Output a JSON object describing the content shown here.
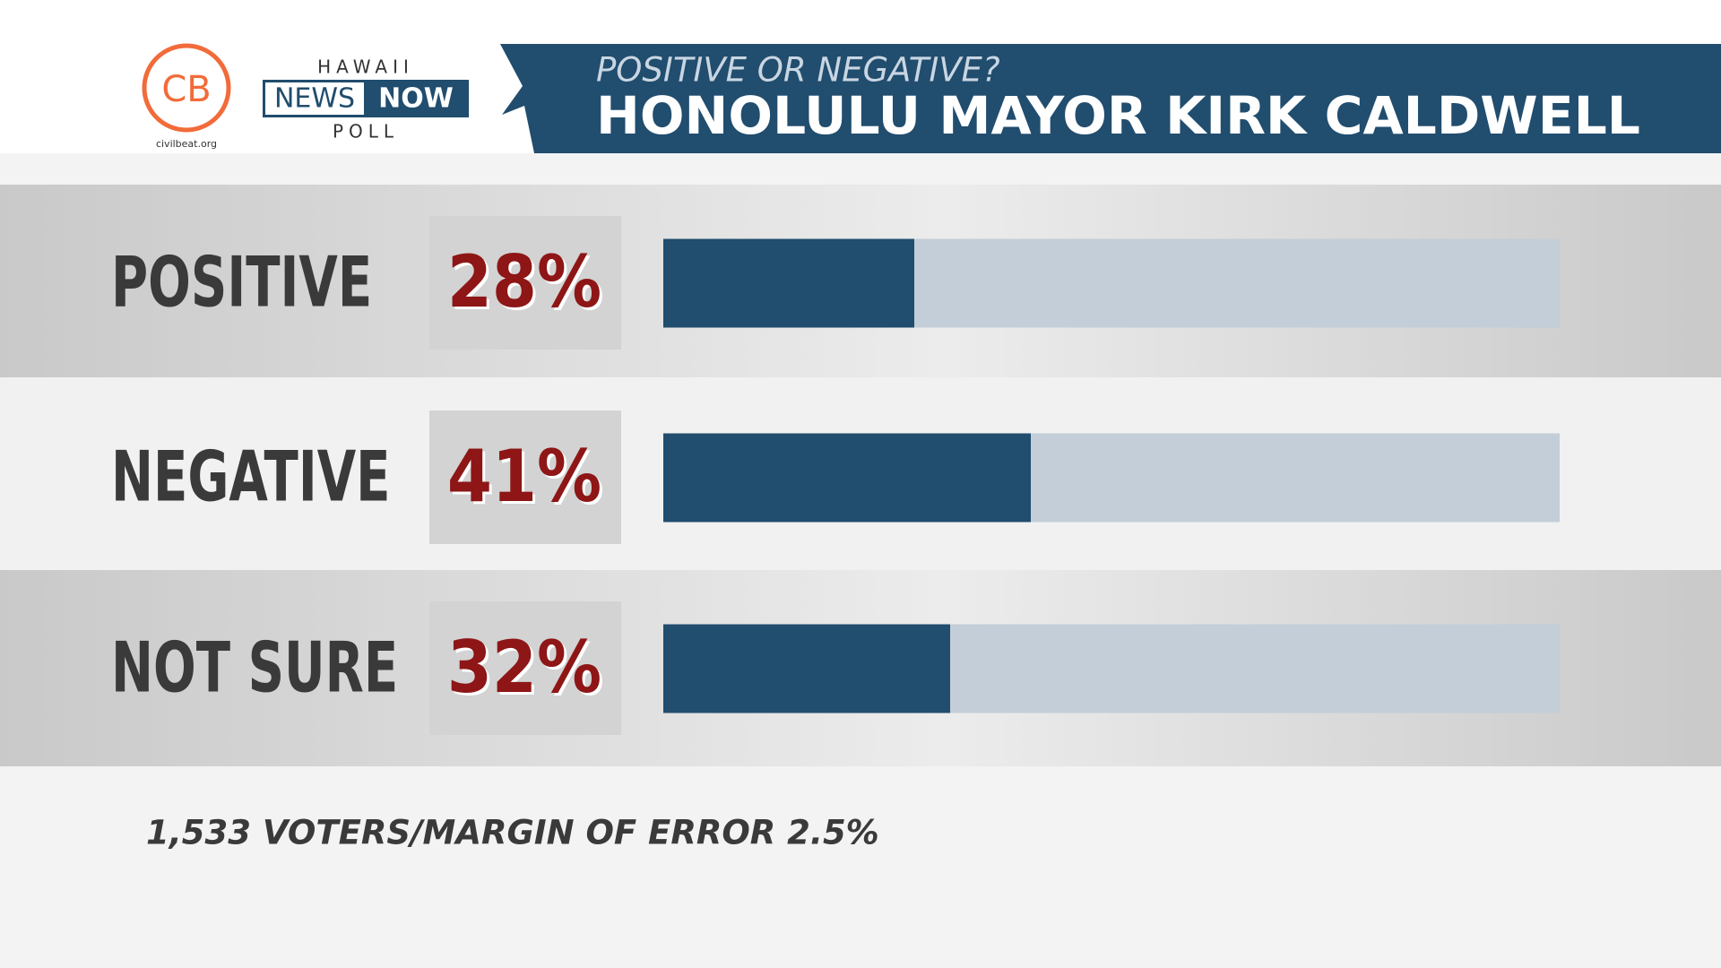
{
  "chart_data": {
    "type": "bar",
    "subtitle": "POSITIVE OR NEGATIVE?",
    "title": "HONOLULU MAYOR KIRK CALDWELL",
    "categories": [
      "POSITIVE",
      "NEGATIVE",
      "NOT SURE"
    ],
    "values": [
      28,
      41,
      32
    ],
    "value_labels": [
      "28%",
      "41%",
      "32%"
    ],
    "xlim": [
      0,
      100
    ],
    "color": "#214d6e",
    "track_color": "#c3ced8",
    "note": "1,533 VOTERS/MARGIN OF ERROR 2.5%"
  },
  "logos": {
    "civilbeat": "CB",
    "civilbeat_url": "civilbeat.org",
    "hawaii": "HAWAII",
    "news": "NEWS",
    "now": "NOW",
    "poll": "POLL"
  }
}
